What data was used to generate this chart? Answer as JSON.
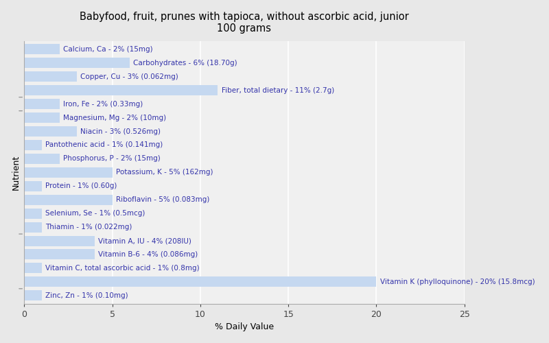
{
  "title": "Babyfood, fruit, prunes with tapioca, without ascorbic acid, junior\n100 grams",
  "xlabel": "% Daily Value",
  "ylabel": "Nutrient",
  "background_color": "#e8e8e8",
  "plot_bg_color": "#f0f0f0",
  "bar_color": "#c5d8f0",
  "xlim": [
    0,
    25
  ],
  "xticks": [
    0,
    5,
    10,
    15,
    20,
    25
  ],
  "nutrients": [
    {
      "label": "Calcium, Ca - 2% (15mg)",
      "value": 2
    },
    {
      "label": "Carbohydrates - 6% (18.70g)",
      "value": 6
    },
    {
      "label": "Copper, Cu - 3% (0.062mg)",
      "value": 3
    },
    {
      "label": "Fiber, total dietary - 11% (2.7g)",
      "value": 11
    },
    {
      "label": "Iron, Fe - 2% (0.33mg)",
      "value": 2
    },
    {
      "label": "Magnesium, Mg - 2% (10mg)",
      "value": 2
    },
    {
      "label": "Niacin - 3% (0.526mg)",
      "value": 3
    },
    {
      "label": "Pantothenic acid - 1% (0.141mg)",
      "value": 1
    },
    {
      "label": "Phosphorus, P - 2% (15mg)",
      "value": 2
    },
    {
      "label": "Potassium, K - 5% (162mg)",
      "value": 5
    },
    {
      "label": "Protein - 1% (0.60g)",
      "value": 1
    },
    {
      "label": "Riboflavin - 5% (0.083mg)",
      "value": 5
    },
    {
      "label": "Selenium, Se - 1% (0.5mcg)",
      "value": 1
    },
    {
      "label": "Thiamin - 1% (0.022mg)",
      "value": 1
    },
    {
      "label": "Vitamin A, IU - 4% (208IU)",
      "value": 4
    },
    {
      "label": "Vitamin B-6 - 4% (0.086mg)",
      "value": 4
    },
    {
      "label": "Vitamin C, total ascorbic acid - 1% (0.8mg)",
      "value": 1
    },
    {
      "label": "Vitamin K (phylloquinone) - 20% (15.8mcg)",
      "value": 20
    },
    {
      "label": "Zinc, Zn - 1% (0.10mg)",
      "value": 1
    }
  ],
  "group_separators_after": [
    3,
    4,
    13,
    17
  ],
  "text_color": "#3333aa",
  "title_fontsize": 10.5,
  "label_fontsize": 7.5,
  "axis_fontsize": 9
}
